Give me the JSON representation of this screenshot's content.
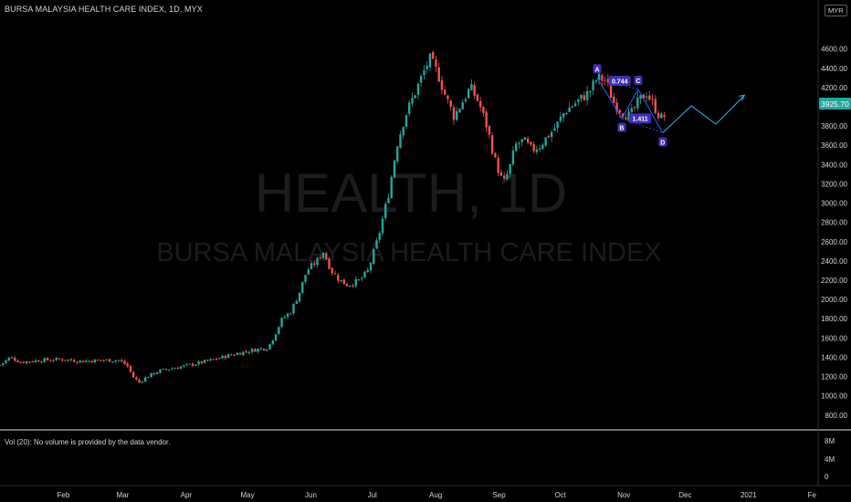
{
  "header": {
    "title": "BURSA MALAYSIA HEALTH CARE INDEX, 1D, MYX",
    "currency": "MYR"
  },
  "watermark": {
    "symbol": "HEALTH, 1D",
    "name": "BURSA MALAYSIA HEALTH CARE INDEX"
  },
  "volume_panel": {
    "label": "Vol (20): No volume is provided by the data vendor.",
    "ticks": [
      "8M",
      "4M",
      "0"
    ]
  },
  "last_price": {
    "label": "3925.70",
    "color": "#26a69a"
  },
  "colors": {
    "up": "#26a69a",
    "down": "#ef5350",
    "pattern": "#2962ff",
    "projection": "#29b6f6",
    "pattern_label_bg": "#3f2fb4",
    "divider": "#e0e0e0"
  },
  "chart_data": {
    "type": "candlestick",
    "title": "BURSA MALAYSIA HEALTH CARE INDEX, 1D, MYX",
    "y_ticks": [
      800,
      1000,
      1200,
      1400,
      1600,
      1800,
      2000,
      2200,
      2400,
      2600,
      2800,
      3000,
      3200,
      3400,
      3600,
      3800,
      4000,
      4200,
      4400,
      4600
    ],
    "ylim": [
      675,
      4900
    ],
    "x_ticks": [
      {
        "label": "Feb",
        "day": 31
      },
      {
        "label": "Mar",
        "day": 60
      },
      {
        "label": "Apr",
        "day": 91
      },
      {
        "label": "May",
        "day": 121
      },
      {
        "label": "Jun",
        "day": 152
      },
      {
        "label": "Jul",
        "day": 182
      },
      {
        "label": "Aug",
        "day": 213
      },
      {
        "label": "Sep",
        "day": 244
      },
      {
        "label": "Oct",
        "day": 274
      },
      {
        "label": "Nov",
        "day": 305
      },
      {
        "label": "Dec",
        "day": 335
      },
      {
        "label": "2021",
        "day": 366
      },
      {
        "label": "Fe",
        "day": 397
      }
    ],
    "xlim": [
      0,
      400
    ],
    "trend": [
      [
        0,
        1320
      ],
      [
        5,
        1400
      ],
      [
        10,
        1350
      ],
      [
        20,
        1370
      ],
      [
        30,
        1380
      ],
      [
        40,
        1360
      ],
      [
        50,
        1370
      ],
      [
        58,
        1370
      ],
      [
        62,
        1320
      ],
      [
        65,
        1200
      ],
      [
        68,
        1140
      ],
      [
        72,
        1200
      ],
      [
        78,
        1260
      ],
      [
        85,
        1290
      ],
      [
        95,
        1330
      ],
      [
        105,
        1380
      ],
      [
        112,
        1420
      ],
      [
        118,
        1450
      ],
      [
        125,
        1480
      ],
      [
        131,
        1500
      ],
      [
        134,
        1620
      ],
      [
        138,
        1800
      ],
      [
        142,
        1870
      ],
      [
        146,
        2050
      ],
      [
        150,
        2300
      ],
      [
        155,
        2400
      ],
      [
        158,
        2500
      ],
      [
        162,
        2300
      ],
      [
        166,
        2200
      ],
      [
        170,
        2150
      ],
      [
        176,
        2200
      ],
      [
        180,
        2300
      ],
      [
        185,
        2650
      ],
      [
        190,
        3100
      ],
      [
        194,
        3600
      ],
      [
        198,
        3900
      ],
      [
        202,
        4100
      ],
      [
        206,
        4300
      ],
      [
        210,
        4500
      ],
      [
        214,
        4350
      ],
      [
        218,
        4100
      ],
      [
        222,
        3900
      ],
      [
        226,
        4050
      ],
      [
        230,
        4200
      ],
      [
        234,
        4050
      ],
      [
        238,
        3800
      ],
      [
        242,
        3450
      ],
      [
        246,
        3200
      ],
      [
        249,
        3350
      ],
      [
        252,
        3600
      ],
      [
        256,
        3650
      ],
      [
        260,
        3550
      ],
      [
        264,
        3600
      ],
      [
        268,
        3700
      ],
      [
        272,
        3800
      ],
      [
        276,
        3950
      ],
      [
        282,
        4050
      ],
      [
        288,
        4150
      ],
      [
        292,
        4300
      ],
      [
        296,
        4280
      ],
      [
        300,
        4050
      ],
      [
        304,
        3950
      ],
      [
        308,
        3900
      ],
      [
        312,
        4050
      ],
      [
        316,
        4150
      ],
      [
        320,
        4000
      ],
      [
        323,
        3880
      ],
      [
        326,
        3925
      ]
    ],
    "harmonic_pattern": {
      "points": [
        {
          "label": "A",
          "day": 292,
          "value": 4300
        },
        {
          "label": "B",
          "day": 304,
          "value": 3880
        },
        {
          "label": "C",
          "day": 312,
          "value": 4180
        },
        {
          "label": "D",
          "day": 324,
          "value": 3730
        }
      ],
      "ratios": [
        {
          "label": "0.744",
          "day": 303,
          "value": 4265
        },
        {
          "label": "1.411",
          "day": 313,
          "value": 3875
        }
      ],
      "projection": [
        [
          324,
          3730
        ],
        [
          338,
          4010
        ],
        [
          350,
          3820
        ],
        [
          364,
          4120
        ]
      ]
    }
  }
}
